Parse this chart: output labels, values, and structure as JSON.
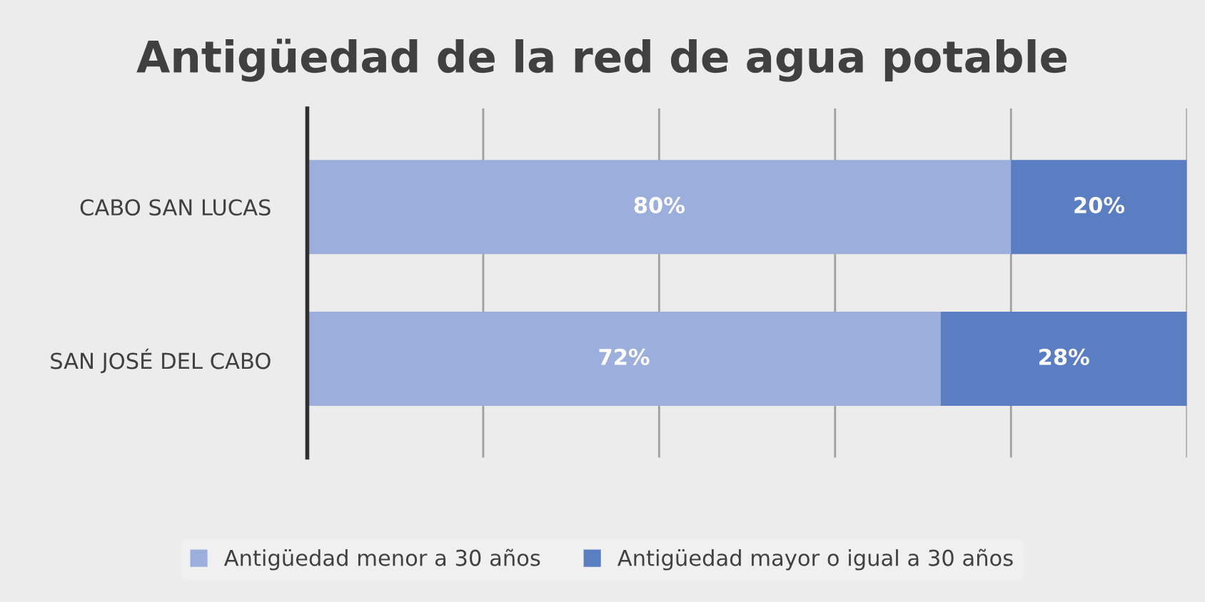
{
  "chart_data": {
    "type": "bar",
    "orientation": "horizontal",
    "stacked": true,
    "title": "Antigüedad de la red de agua potable",
    "categories": [
      "CABO SAN LUCAS",
      "SAN JOSÉ DEL CABO"
    ],
    "series": [
      {
        "name": "Antigüedad menor a 30 años",
        "color": "#9cafdc",
        "values": [
          80,
          72
        ],
        "value_labels": [
          "80%",
          "72%"
        ]
      },
      {
        "name": "Antigüedad mayor o igual a 30 años",
        "color": "#5b7ec2",
        "values": [
          20,
          28
        ],
        "value_labels": [
          "20%",
          "28%"
        ]
      }
    ],
    "grid": "x",
    "legend": "bottom",
    "tick_labels": "y"
  }
}
